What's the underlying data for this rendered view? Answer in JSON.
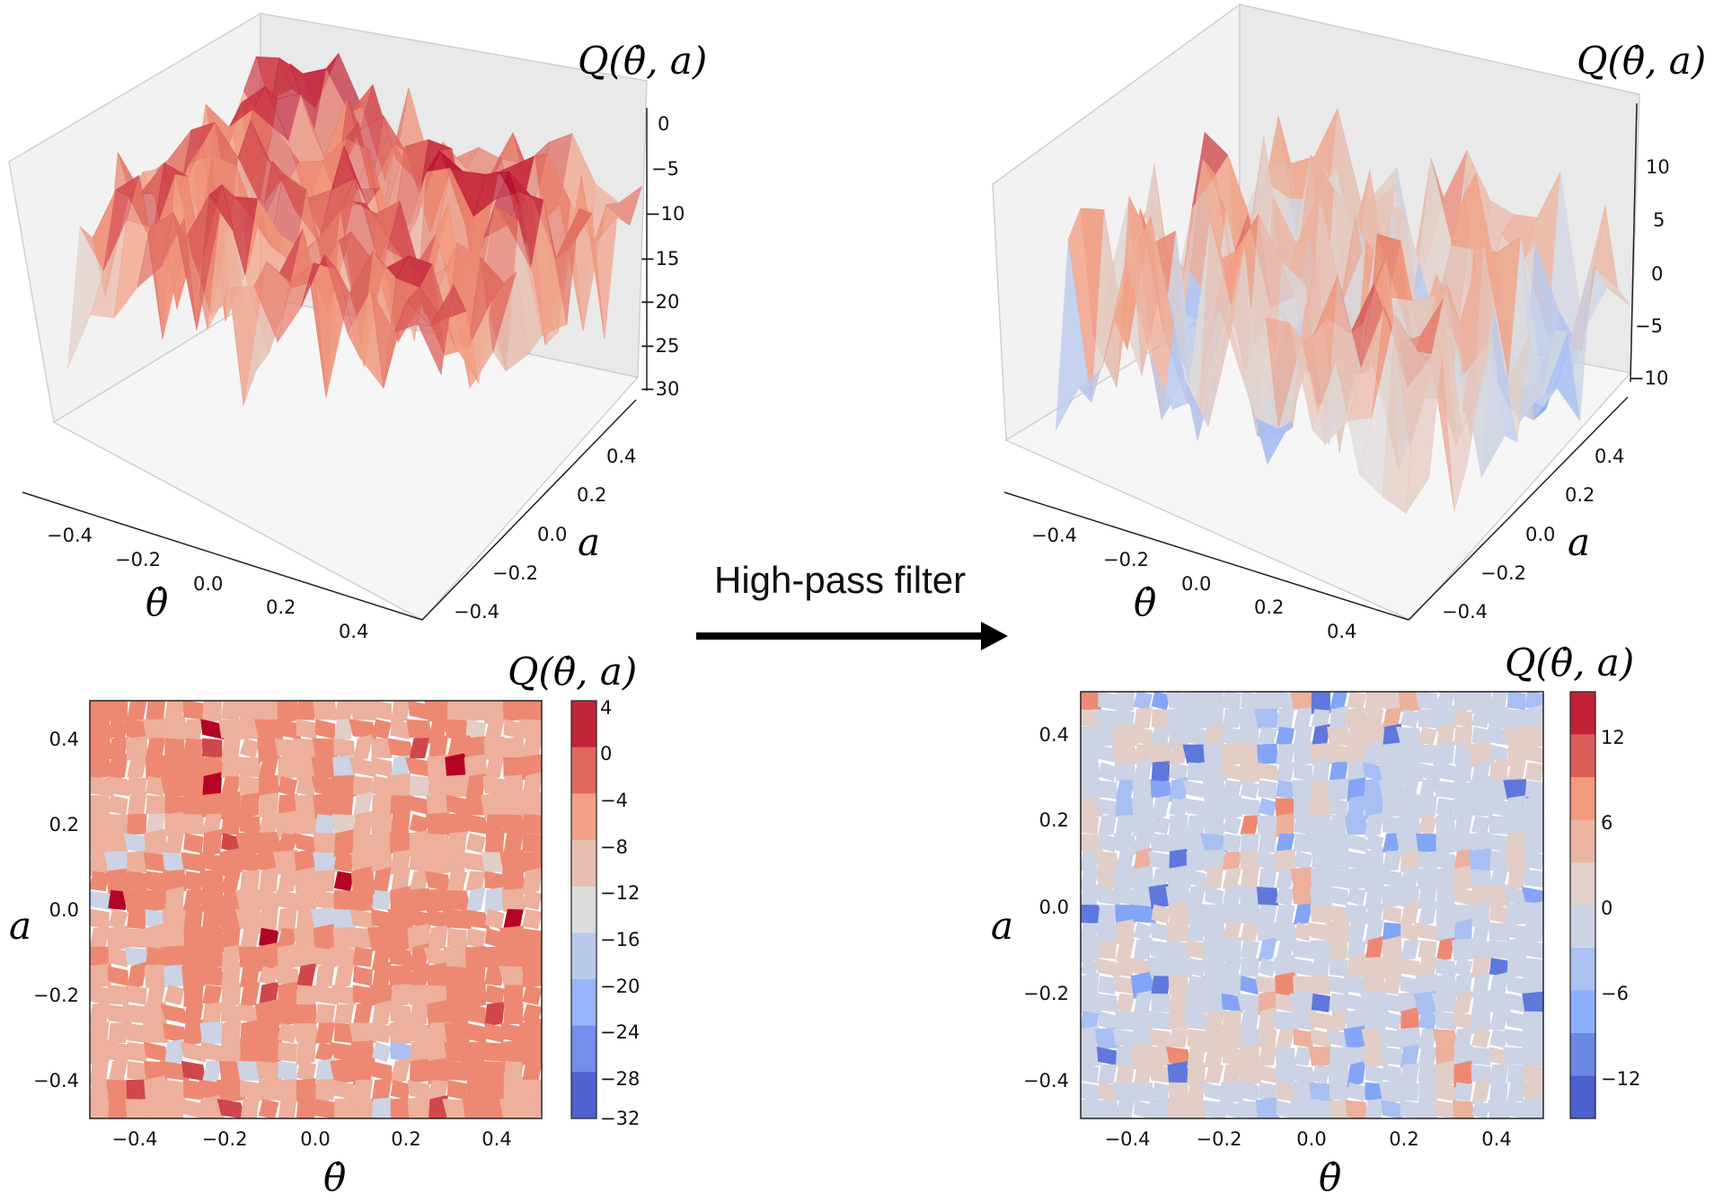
{
  "arrow": {
    "label": "High-pass filter"
  },
  "chart_data": [
    {
      "type": "surface3d",
      "z_title": "Q(θ̇, a)",
      "xlabel": "θ̇",
      "ylabel": "a",
      "x_ticks": [
        "−0.4",
        "−0.2",
        "0.0",
        "0.2",
        "0.4"
      ],
      "y_ticks": [
        "−0.4",
        "−0.2",
        "0.0",
        "0.2",
        "0.4"
      ],
      "z_ticks": [
        "0",
        "−5",
        "−10",
        "−15",
        "−20",
        "−25",
        "−30"
      ],
      "xlim": [
        -0.5,
        0.5
      ],
      "ylim": [
        -0.5,
        0.5
      ],
      "zlim": [
        -32,
        2
      ],
      "colormap": "coolwarm",
      "grid": true
    },
    {
      "type": "surface3d",
      "z_title": "Q(θ̇, a)",
      "xlabel": "θ̇",
      "ylabel": "a",
      "x_ticks": [
        "−0.4",
        "−0.2",
        "0.0",
        "0.2",
        "0.4"
      ],
      "y_ticks": [
        "−0.4",
        "−0.2",
        "0.0",
        "0.2",
        "0.4"
      ],
      "z_ticks": [
        "10",
        "5",
        "0",
        "−5",
        "−10"
      ],
      "xlim": [
        -0.5,
        0.5
      ],
      "ylim": [
        -0.5,
        0.5
      ],
      "zlim": [
        -13,
        14
      ],
      "colormap": "coolwarm",
      "grid": true
    },
    {
      "type": "heatmap",
      "colorbar_title": "Q(θ̇, a)",
      "xlabel": "θ̇",
      "ylabel": "a",
      "x_ticks": [
        "−0.4",
        "−0.2",
        "0.0",
        "0.2",
        "0.4"
      ],
      "y_ticks": [
        "0.4",
        "0.2",
        "0.0",
        "−0.2",
        "−0.4"
      ],
      "colorbar_ticks": [
        "4",
        "0",
        "−4",
        "−8",
        "−12",
        "−16",
        "−20",
        "−24",
        "−28",
        "−32"
      ],
      "levels": [
        -32,
        -28,
        -24,
        -20,
        -16,
        -12,
        -8,
        -4,
        0,
        4
      ],
      "xlim": [
        -0.5,
        0.5
      ],
      "ylim": [
        -0.5,
        0.5
      ],
      "colormap": "coolwarm"
    },
    {
      "type": "heatmap",
      "colorbar_title": "Q(θ̇, a)",
      "xlabel": "θ̇",
      "ylabel": "a",
      "x_ticks": [
        "−0.4",
        "−0.2",
        "0.0",
        "0.2",
        "0.4"
      ],
      "y_ticks": [
        "0.4",
        "0.2",
        "0.0",
        "−0.2",
        "−0.4"
      ],
      "colorbar_ticks": [
        "12",
        "6",
        "0",
        "−6",
        "−12"
      ],
      "levels": [
        -15,
        -12,
        -9,
        -6,
        -3,
        0,
        3,
        6,
        9,
        12,
        15
      ],
      "xlim": [
        -0.5,
        0.5
      ],
      "ylim": [
        -0.5,
        0.5
      ],
      "colormap": "coolwarm"
    }
  ]
}
